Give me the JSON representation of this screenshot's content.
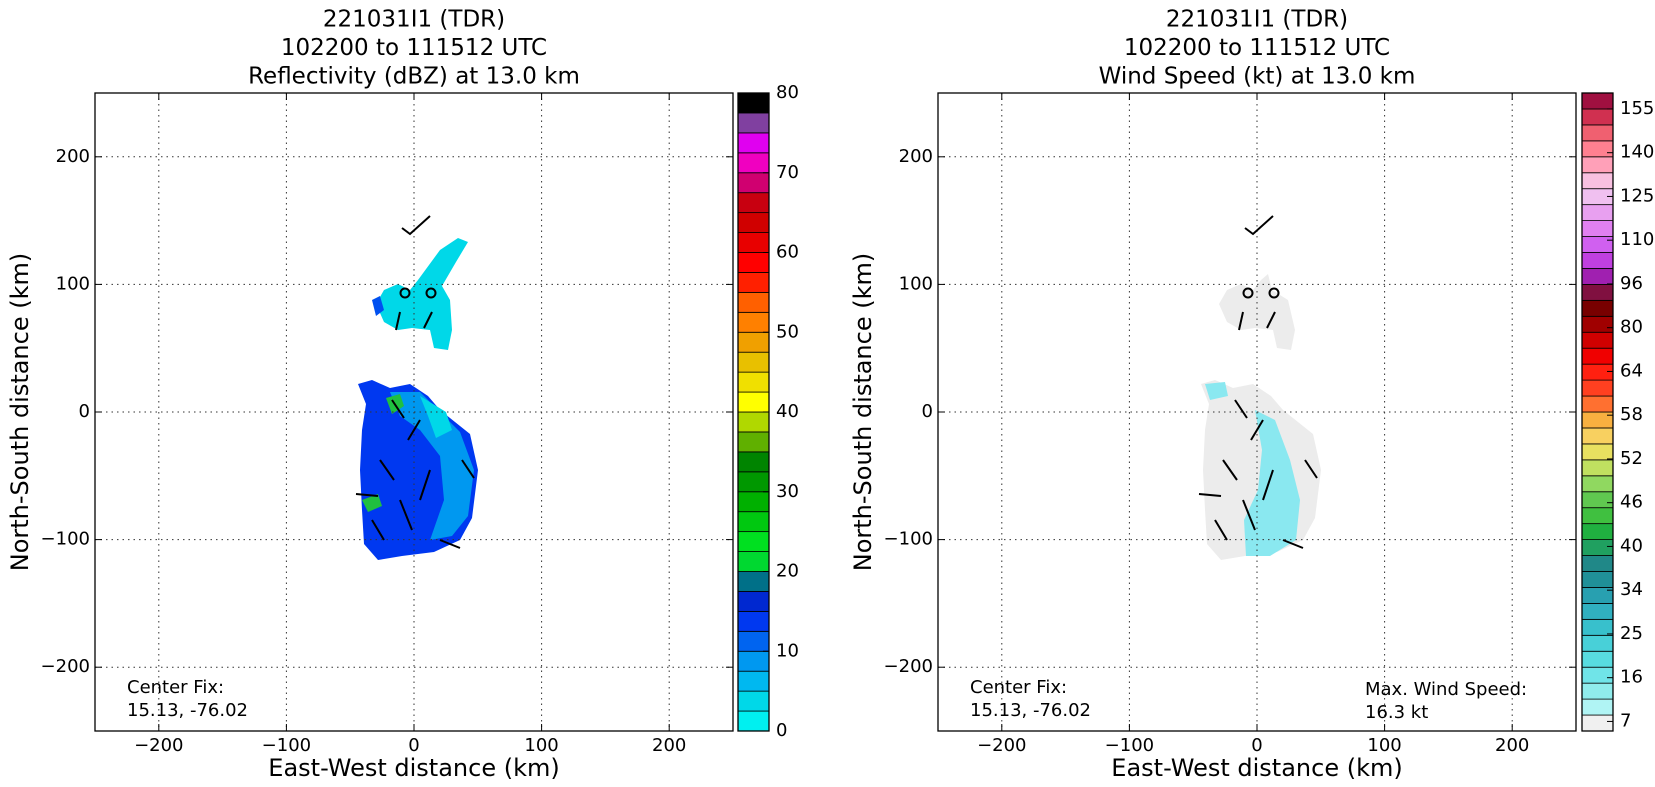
{
  "chart_data": [
    {
      "type": "contourf",
      "title": [
        "221031I1 (TDR)",
        "102200 to 111512 UTC",
        "Reflectivity (dBZ) at 13.0 km"
      ],
      "x_label": "East-West distance (km)",
      "y_label": "North-South distance (km)",
      "xlim": [
        -250,
        250
      ],
      "ylim": [
        -250,
        250
      ],
      "xticks": [
        {
          "value": -200,
          "label": "−200"
        },
        {
          "value": -100,
          "label": "−100"
        },
        0,
        100,
        200
      ],
      "yticks": [
        {
          "value": -200,
          "label": "−200"
        },
        {
          "value": -100,
          "label": "−100"
        },
        0,
        100,
        200
      ],
      "grid": true,
      "annotations": [
        "Center Fix:",
        "15.13, -76.02"
      ],
      "colorbar": {
        "lim": [
          0,
          80
        ],
        "ticks": [
          0,
          10,
          20,
          30,
          40,
          50,
          60,
          70,
          80
        ],
        "colors": [
          "#00f0f0",
          "#00d8e8",
          "#00b8f0",
          "#0098f0",
          "#0064f0",
          "#0038f0",
          "#0028d0",
          "#007088",
          "#00d830",
          "#00e020",
          "#00c810",
          "#00b000",
          "#009800",
          "#008400",
          "#60b000",
          "#b0d800",
          "#ffff00",
          "#f0e000",
          "#e8c000",
          "#f0a000",
          "#ff8000",
          "#ff6000",
          "#ff2000",
          "#ff0000",
          "#e80000",
          "#d00000",
          "#c80010",
          "#d00070",
          "#f000c0",
          "#e000f0",
          "#8040a0",
          "#000000"
        ]
      }
    },
    {
      "type": "contourf",
      "title": [
        "221031I1 (TDR)",
        "102200 to 111512 UTC",
        "Wind Speed (kt) at 13.0 km"
      ],
      "x_label": "East-West distance (km)",
      "y_label": "North-South distance (km)",
      "xlim": [
        -250,
        250
      ],
      "ylim": [
        -250,
        250
      ],
      "xticks": [
        {
          "value": -200,
          "label": "−200"
        },
        {
          "value": -100,
          "label": "−100"
        },
        0,
        100,
        200
      ],
      "yticks": [
        {
          "value": -200,
          "label": "−200"
        },
        {
          "value": -100,
          "label": "−100"
        },
        0,
        100,
        200
      ],
      "grid": true,
      "annotations": [
        "Center Fix:",
        "15.13, -76.02"
      ],
      "annotations_right": [
        "Max. Wind Speed:",
        "16.3 kt"
      ],
      "colorbar": {
        "ticks": [
          7,
          16,
          25,
          34,
          40,
          46,
          52,
          58,
          64,
          80,
          96,
          110,
          125,
          140,
          155
        ],
        "colors": [
          "#f0f0f0",
          "#b0f4f4",
          "#90ecec",
          "#70e4e8",
          "#58dce0",
          "#48d0d8",
          "#38c0cc",
          "#30b0c0",
          "#28a0b0",
          "#209098",
          "#208888",
          "#20a060",
          "#20b040",
          "#40c040",
          "#60c850",
          "#90d860",
          "#c0e060",
          "#e8e060",
          "#f8d060",
          "#f8b040",
          "#ff7030",
          "#ff4020",
          "#ff2010",
          "#f00000",
          "#d00000",
          "#a00000",
          "#780000",
          "#801040",
          "#a020b0",
          "#c040e0",
          "#d060f0",
          "#e080f0",
          "#e8a0f0",
          "#f0c0f0",
          "#f8c0e0",
          "#ffa0b8",
          "#ff8090",
          "#f06070",
          "#d03050",
          "#a01040"
        ]
      }
    }
  ]
}
